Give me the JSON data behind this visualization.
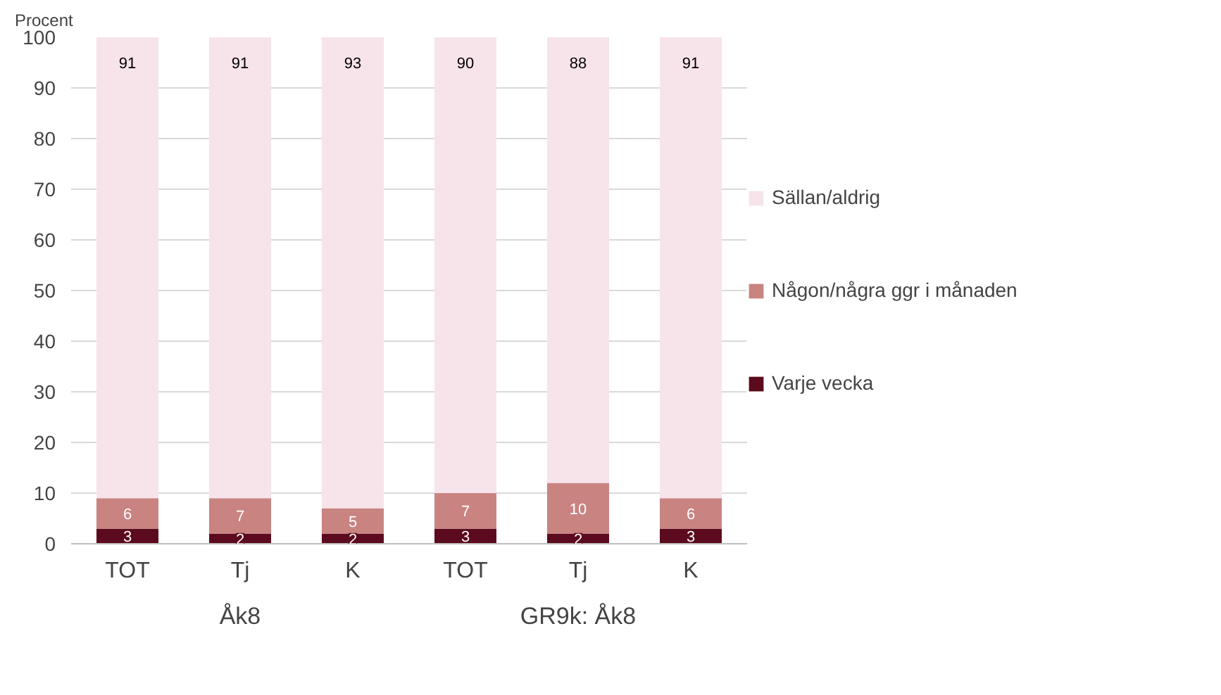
{
  "chart_data": {
    "type": "bar",
    "stacked": true,
    "ylabel": "Procent",
    "categories": [
      "TOT",
      "Tj",
      "K",
      "TOT",
      "Tj",
      "K"
    ],
    "annotations": [
      "Åk8",
      "GR9k: Åk8"
    ],
    "series": [
      {
        "name": "Varje vecka",
        "color": "#5c0a1e",
        "values": [
          3,
          2,
          2,
          3,
          2,
          3
        ]
      },
      {
        "name": "Någon/några ggr i månaden",
        "color": "#c98381",
        "values": [
          6,
          7,
          5,
          7,
          10,
          6
        ]
      },
      {
        "name": "Sällan/aldrig",
        "color": "#f7e4ea",
        "values": [
          91,
          91,
          93,
          90,
          88,
          91
        ]
      }
    ],
    "ylim": [
      0,
      100
    ],
    "yticks": [
      0,
      10,
      20,
      30,
      40,
      50,
      60,
      70,
      80,
      90,
      100
    ],
    "grid": "y",
    "legend": "right",
    "data_labels": true
  }
}
